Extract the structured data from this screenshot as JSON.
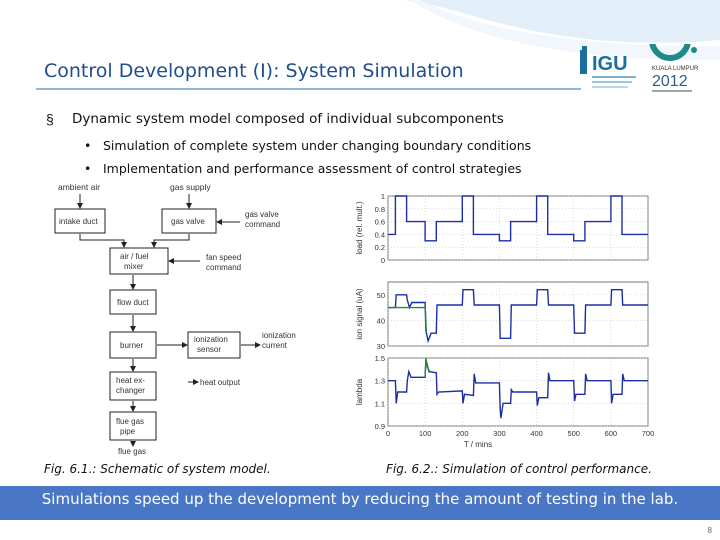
{
  "slide": {
    "title": "Control Development (I): System Simulation",
    "bullet": "Dynamic system model composed of individual subcomponents",
    "bullet_marker": "§",
    "sub_marker": "•",
    "sub_bullets": [
      "Simulation of complete system under changing boundary conditions",
      "Implementation and performance assessment of control strategies"
    ],
    "banner": "Simulations speed up the development by reducing the amount of testing in the lab.",
    "page_number": "8"
  },
  "logo": {
    "org": "IGU",
    "event_city": "KUALA LUMPUR",
    "year": "2012"
  },
  "schematic": {
    "inputs": {
      "ambient_air": "ambient air",
      "gas_supply": "gas supply"
    },
    "blocks": {
      "intake_duct": "intake duct",
      "gas_valve": "gas valve",
      "mixer": [
        "air / fuel",
        "mixer"
      ],
      "flow_duct": "flow duct",
      "burner": "burner",
      "ionization": [
        "ionization",
        "sensor"
      ],
      "heat_exchanger": [
        "heat ex-",
        "changer"
      ],
      "flue_gas_pipe": [
        "flue gas",
        "pipe"
      ]
    },
    "signals": {
      "gas_valve_command": [
        "gas valve",
        "command"
      ],
      "fan_speed_command": [
        "fan speed",
        "command"
      ],
      "ionization_current": [
        "ionization",
        "current"
      ],
      "heat_output": "heat output",
      "flue_gas": "flue gas"
    },
    "caption": "Fig. 6.1.: Schematic of system model."
  },
  "chart_data": [
    {
      "type": "line",
      "ylabel": "load (rel. mult.)",
      "yticks": [
        0,
        0.2,
        0.4,
        0.6,
        0.8,
        1
      ],
      "ylim": [
        0,
        1
      ],
      "series": [
        {
          "color": "#1a2fa6",
          "x": [
            0,
            20,
            20,
            50,
            50,
            100,
            100,
            130,
            130,
            200,
            200,
            230,
            230,
            300,
            300,
            330,
            330,
            400,
            400,
            430,
            430,
            500,
            500,
            530,
            530,
            600,
            600,
            630,
            630,
            700
          ],
          "y": [
            0.4,
            0.4,
            1,
            1,
            0.6,
            0.6,
            0.3,
            0.3,
            0.6,
            0.6,
            1,
            1,
            0.4,
            0.4,
            0.3,
            0.3,
            0.6,
            0.6,
            1,
            1,
            0.4,
            0.4,
            0.3,
            0.3,
            0.6,
            0.6,
            1,
            1,
            0.4,
            0.4
          ]
        }
      ]
    },
    {
      "type": "line",
      "ylabel": "ion signal (uA)",
      "yticks": [
        30,
        40,
        50
      ],
      "ylim": [
        30,
        55
      ],
      "series": [
        {
          "color": "#1a2fa6",
          "x": [
            0,
            20,
            22,
            50,
            52,
            58,
            64,
            100,
            102,
            108,
            116,
            130,
            132,
            200,
            202,
            230,
            232,
            300,
            302,
            330,
            332,
            400,
            402,
            430,
            432,
            500,
            502,
            530,
            532,
            600,
            602,
            630,
            632,
            700
          ],
          "y": [
            45,
            45,
            50,
            50,
            48,
            45,
            47,
            47,
            36,
            32,
            35,
            35,
            46,
            46,
            52,
            52,
            46,
            46,
            33,
            33,
            46,
            46,
            52,
            52,
            46,
            46,
            35,
            35,
            46,
            46,
            52,
            52,
            46,
            46
          ]
        },
        {
          "color": "#2a8a2a",
          "x": [
            0,
            100,
            101,
            103
          ],
          "y": [
            45,
            45,
            43,
            36
          ]
        }
      ]
    },
    {
      "type": "line",
      "ylabel": "lambda",
      "yticks": [
        0.9,
        1.1,
        1.3,
        1.5
      ],
      "ylim": [
        0.9,
        1.5
      ],
      "series": [
        {
          "color": "#1a2fa6",
          "x": [
            0,
            20,
            22,
            26,
            50,
            52,
            56,
            62,
            100,
            102,
            105,
            110,
            130,
            132,
            136,
            200,
            202,
            206,
            230,
            232,
            236,
            300,
            302,
            304,
            310,
            330,
            332,
            336,
            400,
            402,
            406,
            430,
            432,
            436,
            500,
            502,
            506,
            530,
            532,
            536,
            600,
            602,
            606,
            630,
            632,
            636,
            700
          ],
          "y": [
            1.3,
            1.3,
            1.1,
            1.2,
            1.2,
            1.3,
            1.38,
            1.33,
            1.33,
            1.48,
            1.45,
            1.38,
            1.37,
            1.18,
            1.2,
            1.21,
            1.1,
            1.18,
            1.17,
            1.36,
            1.28,
            1.28,
            1.05,
            0.97,
            1.1,
            1.1,
            1.22,
            1.2,
            1.2,
            1.08,
            1.15,
            1.15,
            1.37,
            1.3,
            1.3,
            1.12,
            1.18,
            1.18,
            1.36,
            1.3,
            1.3,
            1.1,
            1.18,
            1.18,
            1.36,
            1.3,
            1.3
          ]
        },
        {
          "color": "#2a8a2a",
          "x": [
            100,
            102,
            106,
            112
          ],
          "y": [
            1.33,
            1.5,
            1.42,
            1.38
          ]
        }
      ]
    }
  ],
  "chart_axis": {
    "xlabel": "T / mins",
    "xticks": [
      0,
      100,
      200,
      300,
      400,
      500,
      600,
      700
    ],
    "xlim": [
      0,
      700
    ]
  },
  "chart_caption": "Fig. 6.2.: Simulation of control performance.",
  "colors": {
    "title": "#1f4e8c",
    "banner": "#4a76c6",
    "series_main": "#1a2fa6",
    "series_alt": "#2a8a2a"
  }
}
